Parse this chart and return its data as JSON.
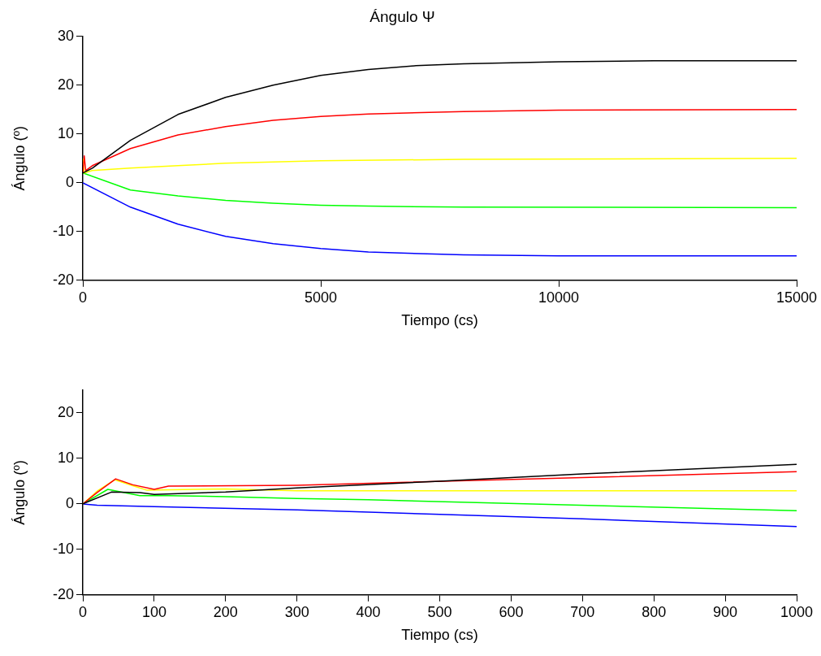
{
  "chart_data": [
    {
      "type": "line",
      "title": "Ángulo Ψ",
      "xlabel": "Tiempo (cs)",
      "ylabel": "Ángulo (º)",
      "xlim": [
        0,
        15000
      ],
      "xticks": [
        0,
        5000,
        10000,
        15000
      ],
      "ylim": [
        -20,
        30
      ],
      "yticks": [
        -20,
        -10,
        0,
        10,
        20,
        30
      ],
      "grid": false,
      "legend": false,
      "marker": "none",
      "line_style": "solid",
      "series": [
        {
          "color": "#000000",
          "x": [
            0,
            200,
            1000,
            2000,
            3000,
            4000,
            5000,
            6000,
            7000,
            8000,
            10000,
            12000,
            15000
          ],
          "values": [
            2,
            3,
            8.7,
            14,
            17.5,
            20,
            22,
            23.2,
            24,
            24.4,
            24.8,
            25,
            25
          ]
        },
        {
          "color": "#ff0000",
          "x": [
            0,
            30,
            60,
            200,
            1000,
            2000,
            3000,
            4000,
            5000,
            6000,
            8000,
            10000,
            15000
          ],
          "values": [
            2,
            5.5,
            2.5,
            3.5,
            7,
            9.8,
            11.5,
            12.8,
            13.6,
            14.1,
            14.6,
            14.9,
            15
          ]
        },
        {
          "color": "#ffff00",
          "x": [
            0,
            30,
            200,
            1000,
            2000,
            3000,
            5000,
            8000,
            15000
          ],
          "values": [
            5,
            2,
            2.5,
            3,
            3.5,
            4,
            4.5,
            4.8,
            5
          ]
        },
        {
          "color": "#00ff00",
          "x": [
            0,
            1000,
            2000,
            3000,
            4000,
            5000,
            6000,
            8000,
            15000
          ],
          "values": [
            2,
            -1.5,
            -2.7,
            -3.6,
            -4.2,
            -4.6,
            -4.8,
            -5,
            -5.1
          ]
        },
        {
          "color": "#0000ff",
          "x": [
            0,
            1000,
            2000,
            3000,
            4000,
            5000,
            6000,
            8000,
            10000,
            15000
          ],
          "values": [
            0,
            -5,
            -8.5,
            -11,
            -12.5,
            -13.5,
            -14.2,
            -14.8,
            -15,
            -15
          ]
        }
      ]
    },
    {
      "type": "line",
      "xlabel": "Tiempo (cs)",
      "ylabel": "Ángulo (º)",
      "xlim": [
        0,
        1000
      ],
      "xticks": [
        0,
        100,
        200,
        300,
        400,
        500,
        600,
        700,
        800,
        900,
        1000
      ],
      "ylim": [
        -20,
        25
      ],
      "yticks": [
        -20,
        -10,
        0,
        10,
        20
      ],
      "grid": false,
      "legend": false,
      "marker": "none",
      "line_style": "solid",
      "series": [
        {
          "color": "#000000",
          "x": [
            0,
            40,
            80,
            100,
            200,
            300,
            500,
            700,
            1000
          ],
          "values": [
            0,
            2.6,
            2.5,
            2.1,
            2.6,
            3.5,
            5,
            6.6,
            8.7
          ]
        },
        {
          "color": "#ff0000",
          "x": [
            0,
            20,
            46,
            70,
            100,
            120,
            300,
            700,
            1000
          ],
          "values": [
            0,
            2.5,
            5.5,
            4.2,
            3.2,
            3.9,
            4.1,
            5.8,
            7.1
          ]
        },
        {
          "color": "#ffff00",
          "x": [
            0,
            20,
            45,
            70,
            90,
            200,
            300,
            1000
          ],
          "values": [
            0,
            2.8,
            5.3,
            4,
            3,
            3.3,
            2.9,
            2.9
          ]
        },
        {
          "color": "#00ff00",
          "x": [
            0,
            35,
            80,
            120,
            200,
            300,
            400,
            1000
          ],
          "values": [
            0,
            3.2,
            1.8,
            1.8,
            1.6,
            1.2,
            0.9,
            -1.5
          ]
        },
        {
          "color": "#0000ff",
          "x": [
            0,
            20,
            100,
            300,
            500,
            700,
            1000
          ],
          "values": [
            0,
            -0.3,
            -0.6,
            -1.3,
            -2.3,
            -3.3,
            -5
          ]
        }
      ]
    }
  ]
}
